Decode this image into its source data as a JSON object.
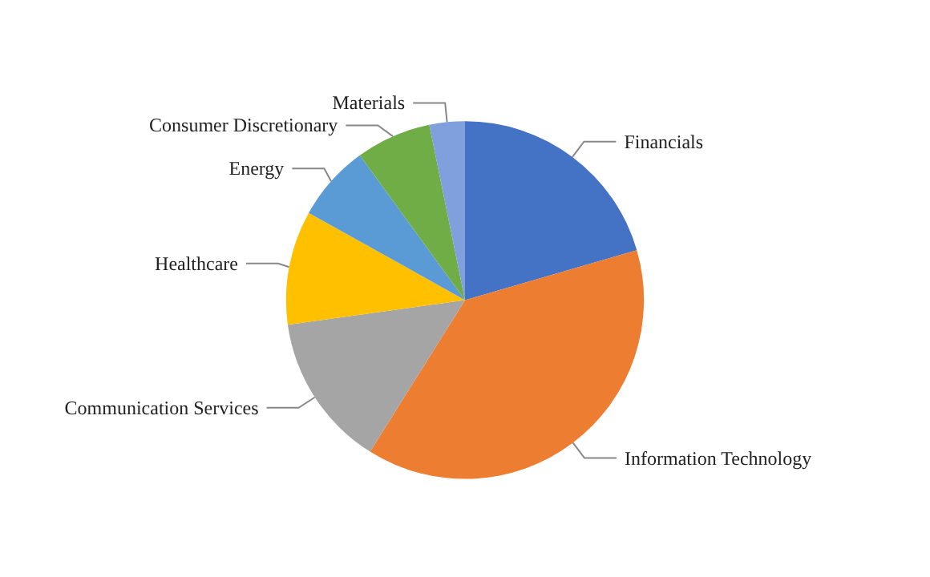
{
  "chart_data": {
    "type": "pie",
    "categories": [
      "Financials",
      "Information Technology",
      "Communication Services",
      "Healthcare",
      "Energy",
      "Consumer Discretionary",
      "Materials"
    ],
    "values": [
      20.5,
      38.4,
      13.9,
      10.3,
      6.9,
      6.8,
      3.2
    ],
    "colors": [
      "#4472c4",
      "#ed7d31",
      "#a5a5a5",
      "#ffc000",
      "#5b9bd5",
      "#70ad47",
      "#7f9fdd"
    ]
  }
}
